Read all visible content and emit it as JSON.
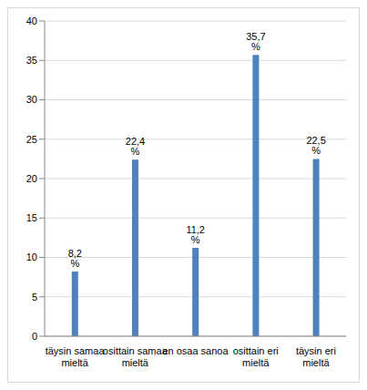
{
  "chart_data": {
    "type": "bar",
    "categories": [
      "täysin samaa mieltä",
      "osittain samaa mieltä",
      "en osaa sanoa",
      "osittain eri mieltä",
      "täysin eri mieltä"
    ],
    "values": [
      8.2,
      22.4,
      11.2,
      35.7,
      22.5
    ],
    "value_labels": [
      "8,2 %",
      "22,4 %",
      "11,2 %",
      "35,7 %",
      "22,5 %"
    ],
    "data_labels": true,
    "color": "#4f81bd",
    "ylim": [
      0,
      40
    ],
    "yticks": [
      0,
      5,
      10,
      15,
      20,
      25,
      30,
      35,
      40
    ],
    "grid": true
  }
}
